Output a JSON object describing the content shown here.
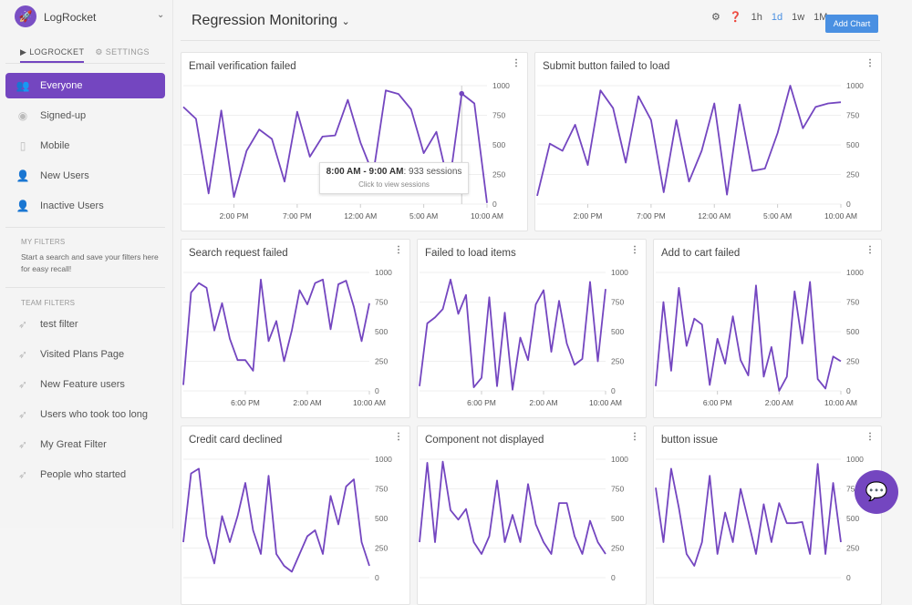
{
  "sidebar": {
    "org": "LogRocket",
    "tabs": [
      "LOGROCKET",
      "SETTINGS"
    ],
    "segments": [
      {
        "label": "Everyone",
        "icon": "users-icon",
        "active": true
      },
      {
        "label": "Signed-up",
        "icon": "user-circle-icon"
      },
      {
        "label": "Mobile",
        "icon": "mobile-icon"
      },
      {
        "label": "New Users",
        "icon": "user-plus-icon"
      },
      {
        "label": "Inactive Users",
        "icon": "user-x-icon"
      }
    ],
    "my_filters": {
      "heading": "MY FILTERS",
      "hint": "Start a search and save your filters here for easy recall!"
    },
    "team_filters": {
      "heading": "TEAM FILTERS",
      "items": [
        "test filter",
        "Visited Plans Page",
        "New Feature users",
        "Users who took too long",
        "My Great Filter",
        "People who started"
      ]
    }
  },
  "header": {
    "title": "Regression Monitoring",
    "ranges": [
      "1h",
      "1d",
      "1w",
      "1M"
    ],
    "active_range": "1d",
    "add_chart": "Add Chart"
  },
  "accent": "#7446c0",
  "tooltip": {
    "range": "8:00 AM - 9:00 AM",
    "value": ": 933 sessions",
    "hint": "Click to view sessions"
  },
  "chart_data": [
    {
      "type": "line",
      "title": "Email verification failed",
      "ylim": [
        0,
        1000
      ],
      "y_ticks": [
        "1000",
        "750",
        "500",
        "250",
        "0"
      ],
      "x_ticks": [
        {
          "at": 4,
          "label": "2:00 PM"
        },
        {
          "at": 9,
          "label": "7:00 PM"
        },
        {
          "at": 14,
          "label": "12:00 AM"
        },
        {
          "at": 19,
          "label": "5:00 AM"
        },
        {
          "at": 24,
          "label": "10:00 AM"
        }
      ],
      "values": [
        820,
        720,
        90,
        790,
        60,
        450,
        630,
        550,
        190,
        780,
        400,
        570,
        580,
        880,
        520,
        250,
        960,
        930,
        800,
        430,
        610,
        150,
        933,
        850,
        10
      ],
      "highlight": 22
    },
    {
      "type": "line",
      "title": "Submit button failed to load",
      "ylim": [
        0,
        1000
      ],
      "y_ticks": [
        "1000",
        "750",
        "500",
        "250",
        "0"
      ],
      "x_ticks": [
        {
          "at": 4,
          "label": "2:00 PM"
        },
        {
          "at": 9,
          "label": "7:00 PM"
        },
        {
          "at": 14,
          "label": "12:00 AM"
        },
        {
          "at": 19,
          "label": "5:00 AM"
        },
        {
          "at": 24,
          "label": "10:00 AM"
        }
      ],
      "values": [
        70,
        510,
        450,
        670,
        330,
        960,
        810,
        350,
        910,
        710,
        100,
        710,
        190,
        450,
        850,
        80,
        840,
        280,
        300,
        600,
        1000,
        640,
        820,
        850,
        860
      ]
    },
    {
      "type": "line",
      "title": "Search request failed",
      "ylim": [
        0,
        1000
      ],
      "y_ticks": [
        "1000",
        "750",
        "500",
        "250",
        "0"
      ],
      "x_ticks": [
        {
          "at": 8,
          "label": "6:00 PM"
        },
        {
          "at": 16,
          "label": "2:00 AM"
        },
        {
          "at": 24,
          "label": "10:00 AM"
        }
      ],
      "values": [
        50,
        830,
        910,
        870,
        510,
        740,
        440,
        260,
        260,
        170,
        940,
        420,
        590,
        250,
        510,
        850,
        730,
        910,
        940,
        520,
        900,
        930,
        710,
        420,
        740
      ]
    },
    {
      "type": "line",
      "title": "Failed to load items",
      "ylim": [
        0,
        1000
      ],
      "y_ticks": [
        "1000",
        "750",
        "500",
        "250",
        "0"
      ],
      "x_ticks": [
        {
          "at": 8,
          "label": "6:00 PM"
        },
        {
          "at": 16,
          "label": "2:00 AM"
        },
        {
          "at": 24,
          "label": "10:00 AM"
        }
      ],
      "values": [
        40,
        570,
        620,
        690,
        940,
        650,
        810,
        30,
        110,
        790,
        40,
        660,
        10,
        450,
        260,
        730,
        850,
        330,
        760,
        400,
        220,
        270,
        920,
        250,
        860
      ]
    },
    {
      "type": "line",
      "title": "Add to cart failed",
      "ylim": [
        0,
        1000
      ],
      "y_ticks": [
        "1000",
        "750",
        "500",
        "250",
        "0"
      ],
      "x_ticks": [
        {
          "at": 8,
          "label": "6:00 PM"
        },
        {
          "at": 16,
          "label": "2:00 AM"
        },
        {
          "at": 24,
          "label": "10:00 AM"
        }
      ],
      "values": [
        40,
        750,
        170,
        870,
        380,
        610,
        560,
        50,
        440,
        230,
        630,
        260,
        130,
        890,
        120,
        370,
        0,
        120,
        840,
        400,
        920,
        100,
        20,
        290,
        250
      ]
    },
    {
      "type": "line",
      "title": "Credit card declined",
      "ylim": [
        0,
        1000
      ],
      "y_ticks": [
        "1000",
        "750",
        "500",
        "250",
        "0"
      ],
      "x_ticks": [],
      "values": [
        300,
        880,
        920,
        350,
        120,
        520,
        300,
        520,
        800,
        400,
        200,
        860,
        200,
        100,
        50,
        200,
        350,
        400,
        200,
        690,
        450,
        770,
        830,
        300,
        100
      ]
    },
    {
      "type": "line",
      "title": "Component not displayed",
      "ylim": [
        0,
        1000
      ],
      "y_ticks": [
        "1000",
        "750",
        "500",
        "250",
        "0"
      ],
      "x_ticks": [],
      "values": [
        300,
        970,
        300,
        980,
        570,
        490,
        580,
        300,
        200,
        350,
        820,
        300,
        530,
        300,
        790,
        450,
        300,
        200,
        630,
        630,
        350,
        200,
        480,
        300,
        200
      ]
    },
    {
      "type": "line",
      "title": "button issue",
      "ylim": [
        0,
        1000
      ],
      "y_ticks": [
        "1000",
        "750",
        "500",
        "250",
        "0"
      ],
      "x_ticks": [],
      "values": [
        760,
        300,
        920,
        590,
        200,
        100,
        300,
        860,
        200,
        550,
        300,
        750,
        480,
        200,
        620,
        300,
        630,
        460,
        460,
        470,
        200,
        960,
        200,
        800,
        300
      ]
    }
  ]
}
